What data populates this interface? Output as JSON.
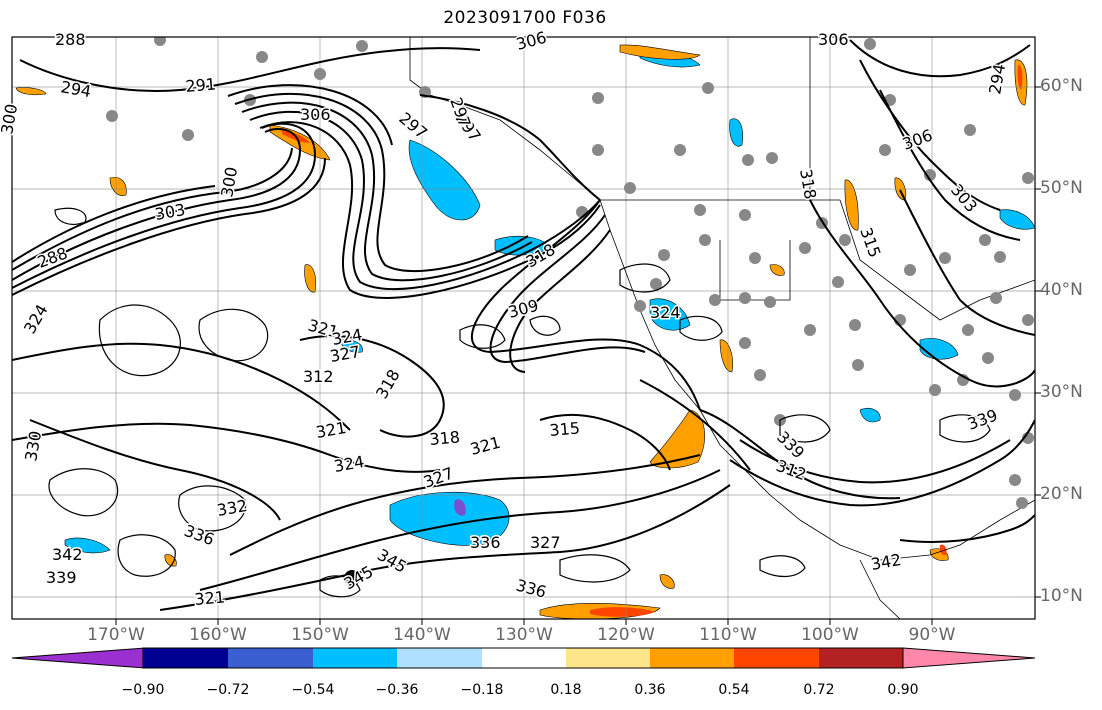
{
  "title": "2023091700 F036",
  "lon_labels": [
    "170°W",
    "160°W",
    "150°W",
    "140°W",
    "130°W",
    "120°W",
    "110°W",
    "100°W",
    "90°W"
  ],
  "lat_labels": [
    "60°N",
    "50°N",
    "40°N",
    "30°N",
    "20°N",
    "10°N"
  ],
  "contour_labels": [
    "288",
    "294",
    "291",
    "300",
    "297",
    "306",
    "306",
    "303",
    "300",
    "297",
    "288",
    "318",
    "309",
    "324",
    "321",
    "324",
    "327",
    "318",
    "324",
    "321",
    "315",
    "318",
    "321",
    "324",
    "327",
    "330",
    "332",
    "336",
    "342",
    "339",
    "336",
    "327",
    "321",
    "345",
    "336",
    "339",
    "342",
    "312",
    "345",
    "339",
    "306",
    "318",
    "315",
    "312",
    "297",
    "306",
    "303",
    "294"
  ],
  "colorbar": {
    "ticks": [
      "−0.90",
      "−0.72",
      "−0.54",
      "−0.36",
      "−0.18",
      "0.18",
      "0.36",
      "0.54",
      "0.72",
      "0.90"
    ],
    "colors": [
      "#9b30d0",
      "#000090",
      "#3a5fd0",
      "#00bfff",
      "#b0e0ff",
      "#ffffff",
      "#ffe58a",
      "#ffa000",
      "#ff4500",
      "#b22222",
      "#ff88aa"
    ],
    "extend": "both"
  },
  "overlays": {
    "markers": "gray-circle",
    "fill_colors": {
      "light_blue": "#00bfff",
      "orange": "#ffa000",
      "red": "#ff4500",
      "purple": "#7b4fd0"
    }
  }
}
